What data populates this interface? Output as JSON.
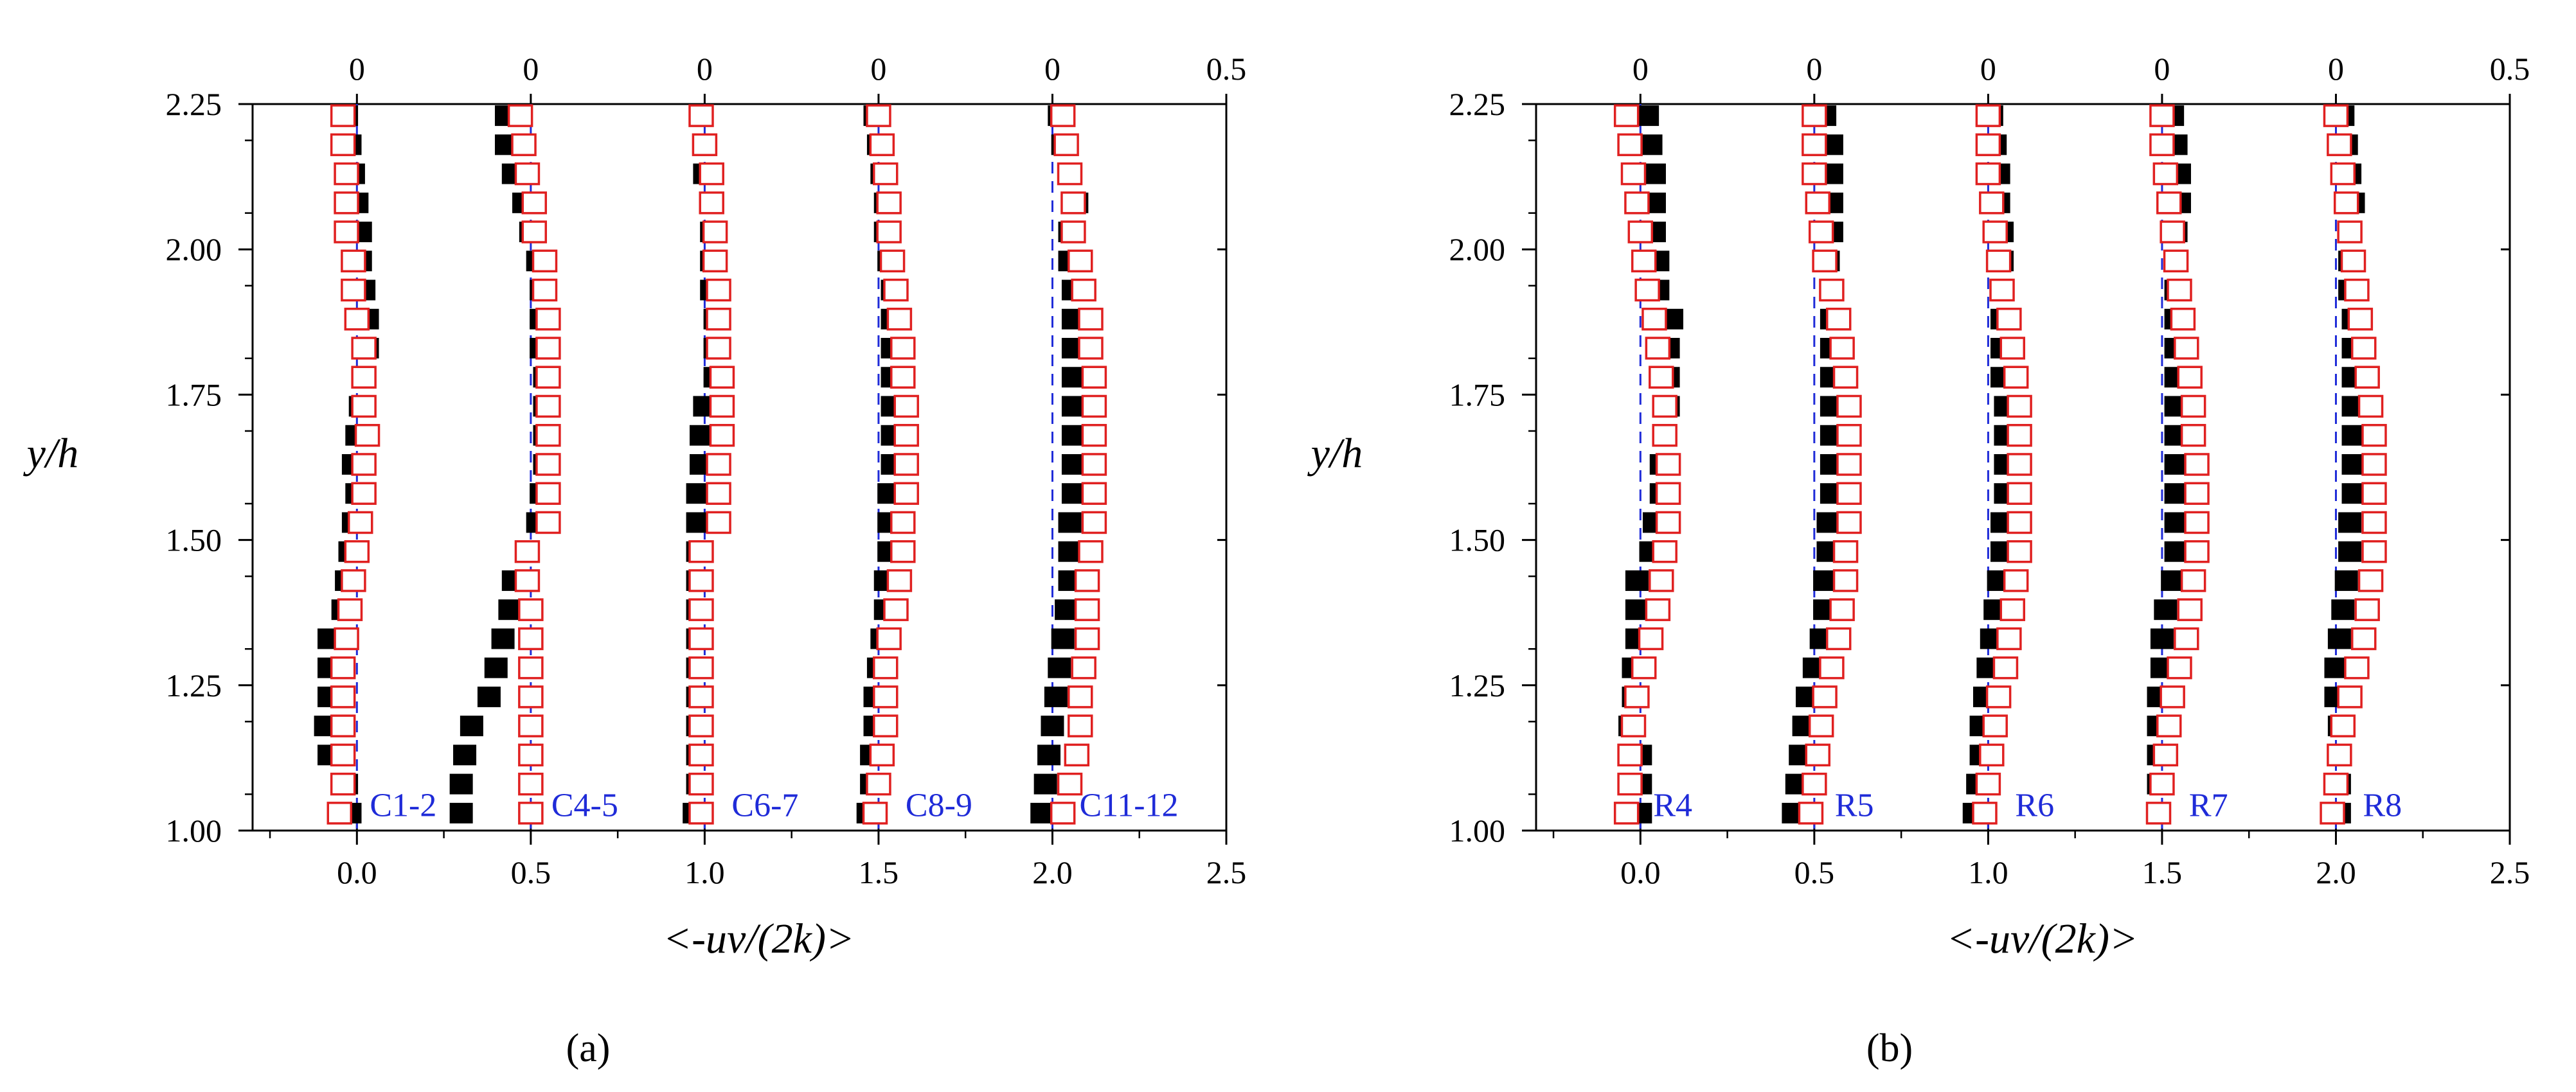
{
  "chart_data": [
    {
      "panel": "a",
      "panel_label": "(a)",
      "type": "scatter",
      "xlabel": "<-uv/(2k)>",
      "ylabel": "y/h",
      "xlim": [
        -0.3,
        2.5
      ],
      "ylim": [
        1.0,
        2.25
      ],
      "x_ticks": [
        "0.0",
        "0.5",
        "1.0",
        "1.5",
        "2.0",
        "2.5"
      ],
      "y_ticks": [
        "1.00",
        "1.25",
        "1.50",
        "1.75",
        "2.00",
        "2.25"
      ],
      "top_axis_labels": [
        "0",
        "0",
        "0",
        "0",
        "0",
        "0.5"
      ],
      "series": [
        {
          "name": "C1-2",
          "offset": 0.0,
          "y": [
            1.03,
            1.08,
            1.13,
            1.18,
            1.23,
            1.28,
            1.33,
            1.38,
            1.43,
            1.48,
            1.53,
            1.58,
            1.63,
            1.68,
            1.73,
            1.78,
            1.83,
            1.88,
            1.93,
            1.98,
            2.03,
            2.08,
            2.13,
            2.18,
            2.23
          ],
          "solid": [
            -0.02,
            -0.03,
            -0.08,
            -0.09,
            -0.08,
            -0.08,
            -0.08,
            -0.04,
            -0.03,
            -0.02,
            -0.01,
            0.0,
            -0.01,
            0.0,
            0.01,
            0.02,
            0.03,
            0.03,
            0.02,
            0.01,
            0.01,
            0.0,
            -0.01,
            -0.02,
            -0.03
          ],
          "open": [
            -0.05,
            -0.04,
            -0.04,
            -0.04,
            -0.04,
            -0.04,
            -0.03,
            -0.02,
            -0.01,
            0.0,
            0.01,
            0.02,
            0.02,
            0.03,
            0.02,
            0.02,
            0.02,
            0.0,
            -0.01,
            -0.01,
            -0.03,
            -0.03,
            -0.03,
            -0.04,
            -0.04
          ]
        },
        {
          "name": "C4-5",
          "offset": 0.5,
          "y": [
            1.03,
            1.08,
            1.13,
            1.18,
            1.23,
            1.28,
            1.33,
            1.38,
            1.43,
            1.48,
            1.53,
            1.58,
            1.63,
            1.68,
            1.73,
            1.78,
            1.83,
            1.88,
            1.93,
            1.98,
            2.03,
            2.08,
            2.13,
            2.18,
            2.23
          ],
          "solid": [
            0.3,
            0.3,
            0.31,
            0.33,
            0.38,
            0.4,
            0.42,
            0.44,
            0.45,
            0.49,
            0.52,
            0.53,
            0.54,
            0.54,
            0.54,
            0.54,
            0.53,
            0.53,
            0.53,
            0.52,
            0.5,
            0.48,
            0.45,
            0.43,
            0.43
          ],
          "open": [
            0.5,
            0.5,
            0.5,
            0.5,
            0.5,
            0.5,
            0.5,
            0.5,
            0.49,
            0.49,
            0.55,
            0.55,
            0.55,
            0.55,
            0.55,
            0.55,
            0.55,
            0.55,
            0.54,
            0.54,
            0.51,
            0.51,
            0.49,
            0.48,
            0.47
          ]
        },
        {
          "name": "C6-7",
          "offset": 1.0,
          "y": [
            1.03,
            1.08,
            1.13,
            1.18,
            1.23,
            1.28,
            1.33,
            1.38,
            1.43,
            1.48,
            1.53,
            1.58,
            1.63,
            1.68,
            1.73,
            1.78,
            1.83,
            1.88,
            1.93,
            1.98,
            2.03,
            2.08,
            2.13,
            2.18,
            2.23
          ],
          "solid": [
            0.97,
            0.98,
            0.98,
            0.98,
            0.98,
            0.98,
            0.98,
            0.98,
            0.98,
            0.98,
            0.98,
            0.98,
            0.99,
            0.99,
            1.0,
            1.03,
            1.03,
            1.03,
            1.02,
            1.02,
            1.02,
            1.02,
            1.0,
            1.0,
            0.99
          ],
          "open": [
            0.99,
            0.99,
            0.99,
            0.99,
            0.99,
            0.99,
            0.99,
            0.99,
            0.99,
            0.99,
            1.04,
            1.04,
            1.04,
            1.05,
            1.05,
            1.05,
            1.04,
            1.04,
            1.04,
            1.03,
            1.03,
            1.02,
            1.02,
            1.0,
            0.99
          ]
        },
        {
          "name": "C8-9",
          "offset": 1.5,
          "y": [
            1.03,
            1.08,
            1.13,
            1.18,
            1.23,
            1.28,
            1.33,
            1.38,
            1.43,
            1.48,
            1.53,
            1.58,
            1.63,
            1.68,
            1.73,
            1.78,
            1.83,
            1.88,
            1.93,
            1.98,
            2.03,
            2.08,
            2.13,
            2.18,
            2.23
          ],
          "solid": [
            1.47,
            1.48,
            1.48,
            1.49,
            1.49,
            1.5,
            1.51,
            1.52,
            1.52,
            1.53,
            1.53,
            1.53,
            1.54,
            1.54,
            1.54,
            1.54,
            1.54,
            1.54,
            1.54,
            1.53,
            1.52,
            1.52,
            1.51,
            1.5,
            1.49
          ],
          "open": [
            1.49,
            1.5,
            1.51,
            1.52,
            1.52,
            1.52,
            1.53,
            1.55,
            1.56,
            1.57,
            1.57,
            1.58,
            1.58,
            1.58,
            1.58,
            1.57,
            1.57,
            1.56,
            1.55,
            1.54,
            1.53,
            1.53,
            1.52,
            1.51,
            1.5
          ]
        },
        {
          "name": "C11-12",
          "offset": 2.0,
          "y": [
            1.03,
            1.08,
            1.13,
            1.18,
            1.23,
            1.28,
            1.33,
            1.38,
            1.43,
            1.48,
            1.53,
            1.58,
            1.63,
            1.68,
            1.73,
            1.78,
            1.83,
            1.88,
            1.93,
            1.98,
            2.03,
            2.08,
            2.13,
            2.18,
            2.23
          ],
          "solid": [
            1.97,
            1.98,
            1.99,
            2.0,
            2.01,
            2.02,
            2.03,
            2.04,
            2.05,
            2.05,
            2.05,
            2.06,
            2.06,
            2.06,
            2.06,
            2.06,
            2.06,
            2.06,
            2.06,
            2.05,
            2.05,
            2.07,
            2.05,
            2.03,
            2.02
          ],
          "open": [
            2.03,
            2.05,
            2.07,
            2.08,
            2.08,
            2.09,
            2.1,
            2.1,
            2.1,
            2.11,
            2.12,
            2.12,
            2.12,
            2.12,
            2.12,
            2.12,
            2.11,
            2.11,
            2.09,
            2.08,
            2.06,
            2.06,
            2.05,
            2.04,
            2.03
          ]
        }
      ]
    },
    {
      "panel": "b",
      "panel_label": "(b)",
      "type": "scatter",
      "xlabel": "<-uv/(2k)>",
      "ylabel": "y/h",
      "xlim": [
        -0.3,
        2.5
      ],
      "ylim": [
        1.0,
        2.25
      ],
      "x_ticks": [
        "0.0",
        "0.5",
        "1.0",
        "1.5",
        "2.0",
        "2.5"
      ],
      "y_ticks": [
        "1.00",
        "1.25",
        "1.50",
        "1.75",
        "2.00",
        "2.25"
      ],
      "top_axis_labels": [
        "0",
        "0",
        "0",
        "0",
        "0",
        "0.5"
      ],
      "series": [
        {
          "name": "R4",
          "offset": 0.0,
          "y": [
            1.03,
            1.08,
            1.13,
            1.18,
            1.23,
            1.28,
            1.33,
            1.38,
            1.43,
            1.48,
            1.53,
            1.58,
            1.63,
            1.68,
            1.73,
            1.78,
            1.83,
            1.88,
            1.93,
            1.98,
            2.03,
            2.08,
            2.13,
            2.18,
            2.23
          ],
          "solid": [
            0.0,
            0.0,
            0.0,
            -0.03,
            -0.02,
            -0.02,
            -0.01,
            -0.01,
            -0.01,
            0.03,
            0.04,
            0.06,
            0.06,
            0.07,
            0.08,
            0.08,
            0.08,
            0.09,
            0.05,
            0.05,
            0.04,
            0.04,
            0.04,
            0.03,
            0.02
          ],
          "open": [
            -0.04,
            -0.03,
            -0.03,
            -0.02,
            -0.01,
            0.01,
            0.03,
            0.05,
            0.06,
            0.07,
            0.08,
            0.08,
            0.08,
            0.07,
            0.07,
            0.06,
            0.05,
            0.04,
            0.02,
            0.01,
            0.0,
            -0.01,
            -0.02,
            -0.03,
            -0.04
          ]
        },
        {
          "name": "R5",
          "offset": 0.5,
          "y": [
            1.03,
            1.08,
            1.13,
            1.18,
            1.23,
            1.28,
            1.33,
            1.38,
            1.43,
            1.48,
            1.53,
            1.58,
            1.63,
            1.68,
            1.73,
            1.78,
            1.83,
            1.88,
            1.93,
            1.98,
            2.03,
            2.08,
            2.13,
            2.18,
            2.23
          ],
          "solid": [
            0.44,
            0.45,
            0.46,
            0.47,
            0.48,
            0.5,
            0.52,
            0.53,
            0.53,
            0.54,
            0.54,
            0.55,
            0.55,
            0.55,
            0.55,
            0.55,
            0.55,
            0.55,
            0.55,
            0.54,
            0.55,
            0.55,
            0.55,
            0.55,
            0.53
          ],
          "open": [
            0.49,
            0.5,
            0.51,
            0.52,
            0.53,
            0.55,
            0.57,
            0.58,
            0.59,
            0.59,
            0.6,
            0.6,
            0.6,
            0.6,
            0.6,
            0.59,
            0.58,
            0.57,
            0.55,
            0.53,
            0.52,
            0.51,
            0.5,
            0.5,
            0.5
          ]
        },
        {
          "name": "R6",
          "offset": 1.0,
          "y": [
            1.03,
            1.08,
            1.13,
            1.18,
            1.23,
            1.28,
            1.33,
            1.38,
            1.43,
            1.48,
            1.53,
            1.58,
            1.63,
            1.68,
            1.73,
            1.78,
            1.83,
            1.88,
            1.93,
            1.98,
            2.03,
            2.08,
            2.13,
            2.18,
            2.23
          ],
          "solid": [
            0.96,
            0.97,
            0.98,
            0.98,
            0.99,
            1.0,
            1.01,
            1.02,
            1.03,
            1.04,
            1.04,
            1.05,
            1.05,
            1.05,
            1.05,
            1.04,
            1.04,
            1.04,
            1.04,
            1.04,
            1.04,
            1.03,
            1.03,
            1.02,
            1.01
          ],
          "open": [
            0.99,
            1.0,
            1.01,
            1.02,
            1.03,
            1.05,
            1.06,
            1.07,
            1.08,
            1.09,
            1.09,
            1.09,
            1.09,
            1.09,
            1.09,
            1.08,
            1.07,
            1.06,
            1.04,
            1.03,
            1.02,
            1.01,
            1.0,
            1.0,
            1.0
          ]
        },
        {
          "name": "R7",
          "offset": 1.5,
          "y": [
            1.03,
            1.08,
            1.13,
            1.18,
            1.23,
            1.28,
            1.33,
            1.38,
            1.43,
            1.48,
            1.53,
            1.58,
            1.63,
            1.68,
            1.73,
            1.78,
            1.83,
            1.88,
            1.93,
            1.98,
            2.03,
            2.08,
            2.13,
            2.18,
            2.23
          ],
          "solid": [
            1.49,
            1.49,
            1.49,
            1.49,
            1.49,
            1.5,
            1.5,
            1.51,
            1.53,
            1.54,
            1.54,
            1.54,
            1.54,
            1.54,
            1.54,
            1.54,
            1.54,
            1.54,
            1.54,
            1.54,
            1.54,
            1.55,
            1.55,
            1.54,
            1.53
          ],
          "open": [
            1.49,
            1.5,
            1.51,
            1.52,
            1.53,
            1.55,
            1.57,
            1.58,
            1.59,
            1.6,
            1.6,
            1.6,
            1.6,
            1.59,
            1.59,
            1.58,
            1.57,
            1.56,
            1.55,
            1.54,
            1.53,
            1.52,
            1.51,
            1.5,
            1.5
          ]
        },
        {
          "name": "R8",
          "offset": 2.0,
          "y": [
            1.03,
            1.08,
            1.13,
            1.18,
            1.23,
            1.28,
            1.33,
            1.38,
            1.43,
            1.48,
            1.53,
            1.58,
            1.63,
            1.68,
            1.73,
            1.78,
            1.83,
            1.88,
            1.93,
            1.98,
            2.03,
            2.08,
            2.13,
            2.18,
            2.23
          ],
          "solid": [
            2.01,
            2.01,
            2.01,
            2.01,
            2.0,
            2.0,
            2.01,
            2.02,
            2.03,
            2.04,
            2.04,
            2.05,
            2.05,
            2.05,
            2.05,
            2.05,
            2.05,
            2.05,
            2.04,
            2.04,
            2.04,
            2.05,
            2.04,
            2.03,
            2.02
          ],
          "open": [
            1.99,
            2.0,
            2.01,
            2.02,
            2.04,
            2.06,
            2.08,
            2.09,
            2.1,
            2.11,
            2.11,
            2.11,
            2.11,
            2.11,
            2.1,
            2.09,
            2.08,
            2.07,
            2.06,
            2.05,
            2.04,
            2.03,
            2.02,
            2.01,
            2.0
          ]
        }
      ]
    }
  ]
}
